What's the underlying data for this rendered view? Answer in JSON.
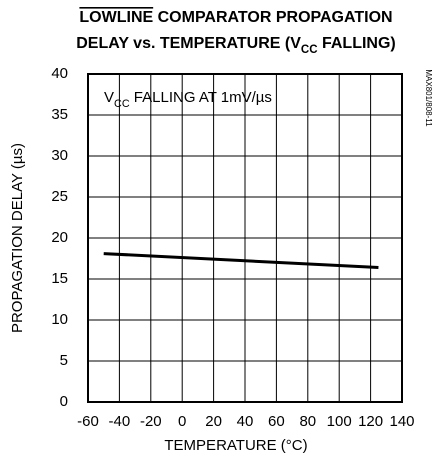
{
  "chart_data": {
    "type": "line",
    "title": [
      [
        {
          "text": "LOWLINE",
          "style": "overline"
        },
        {
          "text": " COMPARATOR PROPAGATION"
        }
      ],
      [
        {
          "text": "DELAY vs. TEMPERATURE (V"
        },
        {
          "text": "CC",
          "style": "sub"
        },
        {
          "text": " FALLING)"
        }
      ]
    ],
    "annotation": [
      {
        "text": "V"
      },
      {
        "text": "CC",
        "style": "sub"
      },
      {
        "text": " FALLING AT 1mV/µs"
      }
    ],
    "side_note": "MAX801/808-11",
    "x_label": "TEMPERATURE (°C)",
    "y_label": "PROPAGATION DELAY (µs)",
    "xlim": [
      -60,
      140
    ],
    "xticks": [
      -60,
      -40,
      -20,
      0,
      20,
      40,
      60,
      80,
      100,
      120,
      140
    ],
    "ylim": [
      0,
      40
    ],
    "yticks": [
      0,
      5,
      10,
      15,
      20,
      25,
      30,
      35,
      40
    ],
    "grid": true,
    "x": [
      -50,
      125
    ],
    "series": [
      {
        "color": "#000000",
        "values": [
          18.1,
          16.4
        ]
      }
    ]
  }
}
